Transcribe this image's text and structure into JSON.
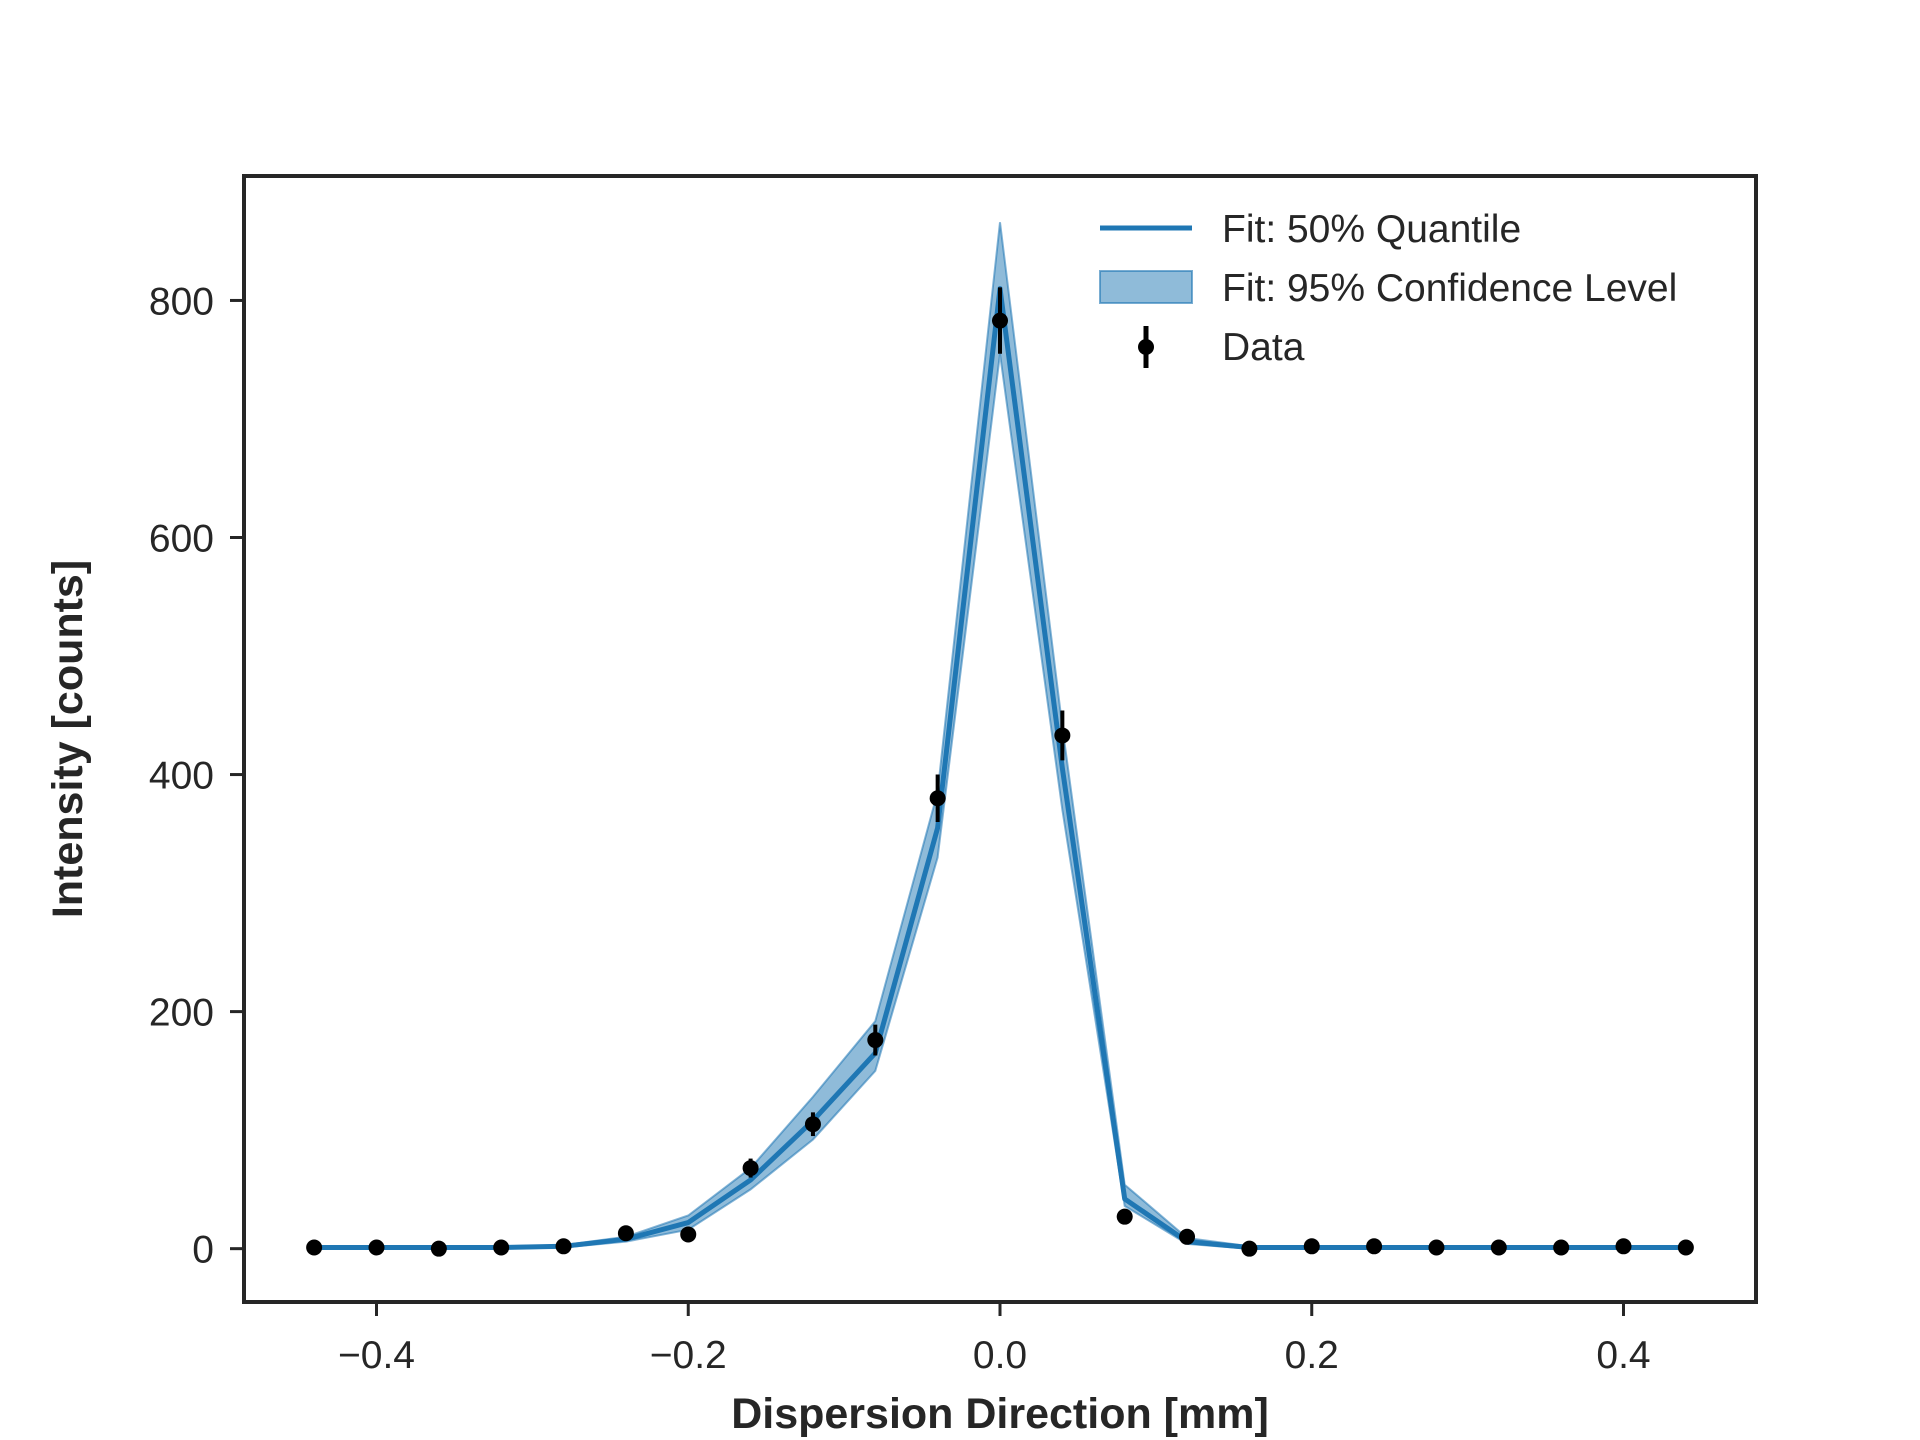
{
  "chart_data": {
    "type": "line",
    "title": "",
    "xlabel": "Dispersion Direction [mm]",
    "ylabel": "Intensity [counts]",
    "xlim": [
      -0.485,
      0.485
    ],
    "ylim": [
      -45,
      905
    ],
    "x_ticks": [
      -0.4,
      -0.2,
      0.0,
      0.2,
      0.4
    ],
    "x_tick_labels": [
      "−0.4",
      "−0.2",
      "0.0",
      "0.2",
      "0.4"
    ],
    "y_ticks": [
      0,
      200,
      400,
      600,
      800
    ],
    "y_tick_labels": [
      "0",
      "200",
      "400",
      "600",
      "800"
    ],
    "grid": false,
    "legend_position": "top-right",
    "x": [
      -0.44,
      -0.4,
      -0.36,
      -0.32,
      -0.28,
      -0.24,
      -0.2,
      -0.16,
      -0.12,
      -0.08,
      -0.04,
      0.0,
      0.04,
      0.08,
      0.12,
      0.16,
      0.2,
      0.24,
      0.28,
      0.32,
      0.36,
      0.4,
      0.44
    ],
    "series": [
      {
        "name": "Fit: 50% Quantile",
        "kind": "line",
        "color": "#1f77b4",
        "values": [
          1,
          1,
          1,
          1,
          2,
          8,
          22,
          58,
          108,
          165,
          355,
          810,
          405,
          42,
          6,
          1,
          1,
          1,
          1,
          1,
          1,
          1,
          1
        ]
      },
      {
        "name": "Fit: 95% Confidence Level",
        "kind": "band",
        "color": "#1f77b4",
        "lower": [
          0,
          0,
          0,
          0,
          1,
          6,
          16,
          50,
          92,
          150,
          330,
          755,
          370,
          36,
          4,
          0,
          0,
          0,
          0,
          0,
          0,
          0,
          0
        ],
        "upper": [
          2,
          2,
          2,
          2,
          3,
          10,
          28,
          68,
          128,
          192,
          385,
          866,
          440,
          54,
          9,
          2,
          2,
          2,
          2,
          2,
          2,
          2,
          2
        ]
      },
      {
        "name": "Data",
        "kind": "errorbar",
        "color": "#000000",
        "values": [
          1,
          1,
          0,
          1,
          2,
          13,
          12,
          68,
          105,
          176,
          380,
          783,
          433,
          27,
          10,
          0,
          2,
          2,
          1,
          1,
          1,
          2,
          1
        ],
        "errors": [
          1,
          1,
          1,
          1,
          1,
          4,
          4,
          8,
          10,
          13,
          20,
          28,
          21,
          5,
          3,
          1,
          1,
          1,
          1,
          1,
          1,
          1,
          1
        ]
      }
    ]
  }
}
